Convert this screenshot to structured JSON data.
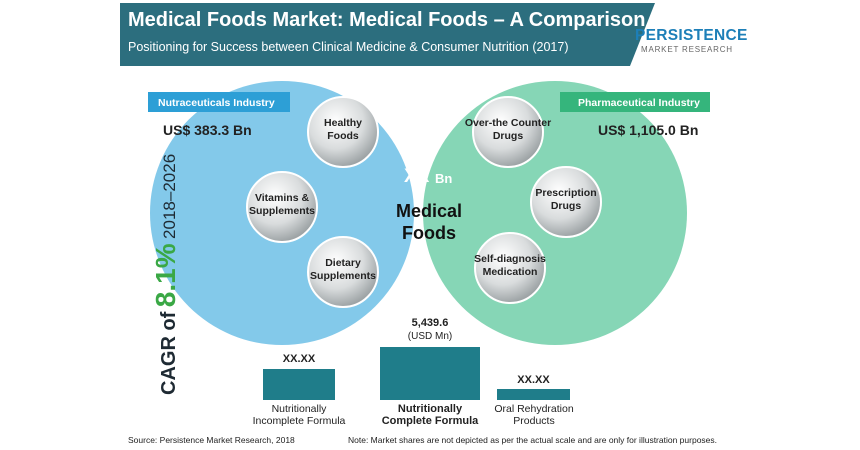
{
  "header": {
    "title": "Medical Foods Market: Medical Foods – A Comparison",
    "subtitle": "Positioning for Success between Clinical Medicine & Consumer Nutrition (2017)"
  },
  "logo": {
    "name": "PERSISTENCE",
    "tagline": "MARKET RESEARCH"
  },
  "venn": {
    "left": {
      "tag": "Nutraceuticals Industry",
      "value": "US$ 383.3 Bn",
      "items": [
        "Healthy Foods",
        "Vitamins & Supplements",
        "Dietary Supplements"
      ]
    },
    "right": {
      "tag": "Pharmaceutical Industry",
      "value": "US$ 1,105.0 Bn",
      "items": [
        "Over-the Counter Drugs",
        "Prescription Drugs",
        "Self-diagnosis Medication"
      ]
    },
    "center": {
      "currency": "US$",
      "amount": "XX",
      "unit": "Bn",
      "label": "Medical Foods"
    }
  },
  "cagr": {
    "prefix": "CAGR of",
    "rate": "8.1%",
    "period": "2018–2026"
  },
  "segments": [
    {
      "value": "XX.XX",
      "label": "Nutritionally Incomplete Formula"
    },
    {
      "value": "5,439.6",
      "unit": "(USD Mn)",
      "label": "Nutritionally Complete Formula"
    },
    {
      "value": "XX.XX",
      "label": "Oral Rehydration Products"
    }
  ],
  "footer": {
    "source": "Source: Persistence Market Research, 2018",
    "note": "Note: Market shares are not depicted as per the actual scale and are only for illustration purposes."
  }
}
